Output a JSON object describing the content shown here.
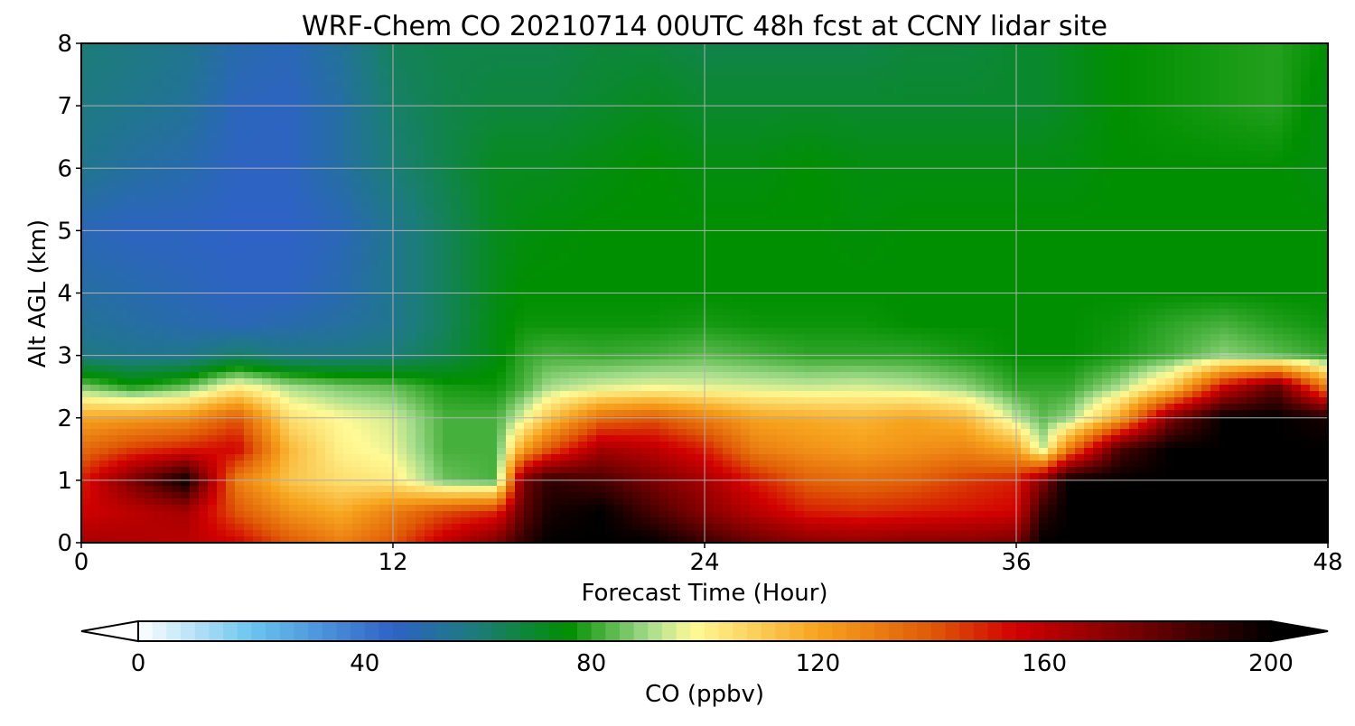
{
  "chart_data": {
    "type": "heatmap",
    "title": "WRF-Chem CO  20210714 00UTC 48h fcst at CCNY lidar site",
    "xlabel": "Forecast Time (Hour)",
    "ylabel": "Alt AGL (km)",
    "xlim": [
      0,
      48
    ],
    "ylim": [
      0,
      8
    ],
    "xticks": [
      0,
      12,
      24,
      36,
      48
    ],
    "yticks": [
      0,
      1,
      2,
      3,
      4,
      5,
      6,
      7,
      8
    ],
    "grid": true,
    "colorbar": {
      "label": "CO  (ppbv)",
      "min": 0,
      "max": 200,
      "ticks": [
        0,
        40,
        80,
        120,
        160,
        200
      ],
      "extend": "both",
      "stops": [
        {
          "value": 0,
          "color": "#ffffff"
        },
        {
          "value": 20,
          "color": "#6ac5ef"
        },
        {
          "value": 45,
          "color": "#2e62c6"
        },
        {
          "value": 60,
          "color": "#1b7d78"
        },
        {
          "value": 76,
          "color": "#008f00"
        },
        {
          "value": 90,
          "color": "#a4dc8c"
        },
        {
          "value": 98,
          "color": "#fffa96"
        },
        {
          "value": 120,
          "color": "#f7a41e"
        },
        {
          "value": 140,
          "color": "#e05a06"
        },
        {
          "value": 155,
          "color": "#d10000"
        },
        {
          "value": 175,
          "color": "#7a0000"
        },
        {
          "value": 200,
          "color": "#000000"
        }
      ]
    },
    "x": [
      0,
      2,
      4,
      6,
      8,
      10,
      12,
      14,
      16,
      17,
      18,
      20,
      22,
      24,
      26,
      28,
      30,
      32,
      34,
      36,
      37,
      38,
      40,
      42,
      44,
      46,
      48
    ],
    "y": [
      0,
      0.5,
      1,
      1.5,
      2,
      2.5,
      3,
      3.5,
      4,
      5,
      6,
      7,
      8
    ],
    "values": [
      [
        165,
        163,
        160,
        155,
        140,
        130,
        140,
        160,
        175,
        190,
        200,
        200,
        200,
        188,
        178,
        172,
        170,
        172,
        172,
        175,
        200,
        200,
        200,
        200,
        200,
        200,
        200
      ],
      [
        155,
        160,
        165,
        140,
        125,
        118,
        130,
        142,
        148,
        180,
        195,
        200,
        185,
        172,
        160,
        150,
        148,
        150,
        152,
        155,
        190,
        200,
        200,
        200,
        200,
        200,
        200
      ],
      [
        150,
        175,
        198,
        130,
        112,
        105,
        102,
        85,
        82,
        175,
        190,
        185,
        175,
        165,
        150,
        138,
        135,
        138,
        145,
        150,
        172,
        200,
        200,
        200,
        200,
        200,
        200
      ],
      [
        135,
        145,
        150,
        155,
        115,
        100,
        96,
        82,
        82,
        120,
        140,
        165,
        160,
        150,
        130,
        125,
        122,
        125,
        128,
        120,
        92,
        130,
        185,
        200,
        200,
        200,
        200
      ],
      [
        120,
        122,
        125,
        140,
        105,
        98,
        94,
        82,
        82,
        95,
        112,
        135,
        140,
        130,
        120,
        118,
        116,
        120,
        115,
        92,
        84,
        88,
        120,
        175,
        200,
        200,
        195
      ],
      [
        86,
        78,
        84,
        100,
        90,
        86,
        84,
        78,
        77,
        82,
        90,
        94,
        96,
        95,
        94,
        93,
        94,
        92,
        88,
        80,
        80,
        80,
        90,
        110,
        155,
        180,
        128
      ],
      [
        58,
        56,
        56,
        62,
        58,
        58,
        60,
        66,
        74,
        80,
        82,
        81,
        82,
        84,
        82,
        80,
        80,
        80,
        78,
        76,
        76,
        76,
        78,
        82,
        88,
        84,
        80
      ],
      [
        54,
        52,
        50,
        48,
        50,
        52,
        56,
        64,
        74,
        77,
        77,
        77,
        77,
        78,
        77,
        77,
        77,
        76,
        76,
        76,
        76,
        76,
        77,
        80,
        82,
        79,
        77
      ],
      [
        52,
        50,
        48,
        46,
        46,
        50,
        56,
        64,
        73,
        76,
        76,
        76,
        76,
        76,
        76,
        76,
        76,
        76,
        76,
        76,
        76,
        76,
        76,
        76,
        76,
        76,
        76
      ],
      [
        48,
        46,
        46,
        45,
        45,
        48,
        56,
        64,
        72,
        74,
        75,
        76,
        76,
        76,
        76,
        76,
        75,
        76,
        76,
        76,
        76,
        76,
        76,
        76,
        76,
        76,
        76
      ],
      [
        56,
        52,
        50,
        46,
        46,
        52,
        60,
        66,
        72,
        72,
        72,
        74,
        76,
        74,
        74,
        76,
        74,
        74,
        74,
        74,
        74,
        74,
        76,
        76,
        76,
        76,
        74
      ],
      [
        58,
        56,
        54,
        47,
        46,
        52,
        62,
        66,
        68,
        68,
        68,
        70,
        72,
        70,
        70,
        70,
        70,
        70,
        70,
        70,
        70,
        72,
        76,
        77,
        78,
        79,
        74
      ],
      [
        60,
        58,
        56,
        50,
        48,
        54,
        64,
        66,
        66,
        66,
        66,
        68,
        68,
        66,
        66,
        66,
        66,
        68,
        68,
        70,
        70,
        72,
        76,
        77,
        78,
        79,
        76
      ]
    ]
  }
}
